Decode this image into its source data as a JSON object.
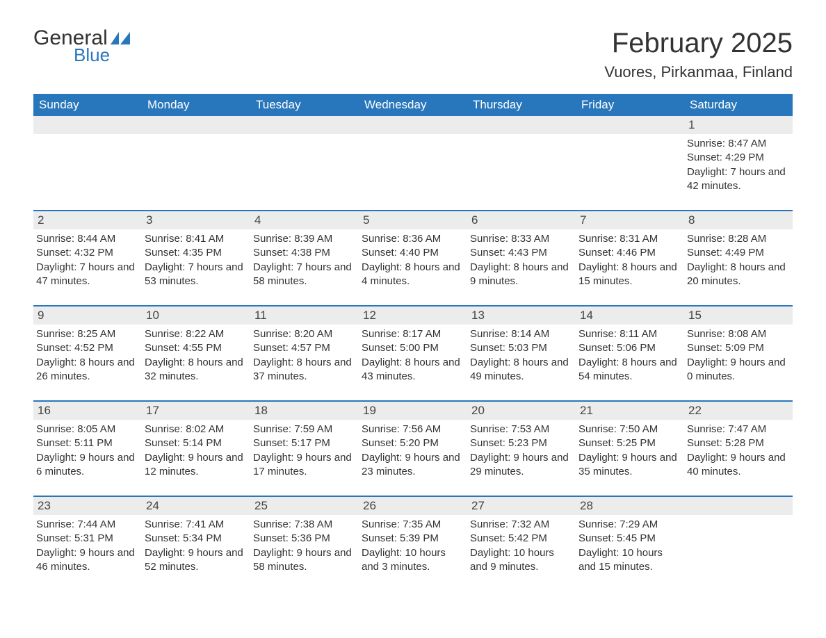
{
  "logo": {
    "text1": "General",
    "text2": "Blue",
    "flag_color": "#2876bb"
  },
  "title": "February 2025",
  "location": "Vuores, Pirkanmaa, Finland",
  "colors": {
    "header_bg": "#2876bb",
    "header_text": "#ffffff",
    "daynum_bg": "#ececec",
    "border": "#2876bb",
    "text": "#333333",
    "background": "#ffffff"
  },
  "typography": {
    "title_fontsize": 40,
    "location_fontsize": 22,
    "weekday_fontsize": 17,
    "daynum_fontsize": 17,
    "body_fontsize": 15
  },
  "weekdays": [
    "Sunday",
    "Monday",
    "Tuesday",
    "Wednesday",
    "Thursday",
    "Friday",
    "Saturday"
  ],
  "labels": {
    "sunrise": "Sunrise:",
    "sunset": "Sunset:",
    "daylight": "Daylight:"
  },
  "weeks": [
    [
      null,
      null,
      null,
      null,
      null,
      null,
      {
        "n": "1",
        "sunrise": "8:47 AM",
        "sunset": "4:29 PM",
        "daylight": "7 hours and 42 minutes."
      }
    ],
    [
      {
        "n": "2",
        "sunrise": "8:44 AM",
        "sunset": "4:32 PM",
        "daylight": "7 hours and 47 minutes."
      },
      {
        "n": "3",
        "sunrise": "8:41 AM",
        "sunset": "4:35 PM",
        "daylight": "7 hours and 53 minutes."
      },
      {
        "n": "4",
        "sunrise": "8:39 AM",
        "sunset": "4:38 PM",
        "daylight": "7 hours and 58 minutes."
      },
      {
        "n": "5",
        "sunrise": "8:36 AM",
        "sunset": "4:40 PM",
        "daylight": "8 hours and 4 minutes."
      },
      {
        "n": "6",
        "sunrise": "8:33 AM",
        "sunset": "4:43 PM",
        "daylight": "8 hours and 9 minutes."
      },
      {
        "n": "7",
        "sunrise": "8:31 AM",
        "sunset": "4:46 PM",
        "daylight": "8 hours and 15 minutes."
      },
      {
        "n": "8",
        "sunrise": "8:28 AM",
        "sunset": "4:49 PM",
        "daylight": "8 hours and 20 minutes."
      }
    ],
    [
      {
        "n": "9",
        "sunrise": "8:25 AM",
        "sunset": "4:52 PM",
        "daylight": "8 hours and 26 minutes."
      },
      {
        "n": "10",
        "sunrise": "8:22 AM",
        "sunset": "4:55 PM",
        "daylight": "8 hours and 32 minutes."
      },
      {
        "n": "11",
        "sunrise": "8:20 AM",
        "sunset": "4:57 PM",
        "daylight": "8 hours and 37 minutes."
      },
      {
        "n": "12",
        "sunrise": "8:17 AM",
        "sunset": "5:00 PM",
        "daylight": "8 hours and 43 minutes."
      },
      {
        "n": "13",
        "sunrise": "8:14 AM",
        "sunset": "5:03 PM",
        "daylight": "8 hours and 49 minutes."
      },
      {
        "n": "14",
        "sunrise": "8:11 AM",
        "sunset": "5:06 PM",
        "daylight": "8 hours and 54 minutes."
      },
      {
        "n": "15",
        "sunrise": "8:08 AM",
        "sunset": "5:09 PM",
        "daylight": "9 hours and 0 minutes."
      }
    ],
    [
      {
        "n": "16",
        "sunrise": "8:05 AM",
        "sunset": "5:11 PM",
        "daylight": "9 hours and 6 minutes."
      },
      {
        "n": "17",
        "sunrise": "8:02 AM",
        "sunset": "5:14 PM",
        "daylight": "9 hours and 12 minutes."
      },
      {
        "n": "18",
        "sunrise": "7:59 AM",
        "sunset": "5:17 PM",
        "daylight": "9 hours and 17 minutes."
      },
      {
        "n": "19",
        "sunrise": "7:56 AM",
        "sunset": "5:20 PM",
        "daylight": "9 hours and 23 minutes."
      },
      {
        "n": "20",
        "sunrise": "7:53 AM",
        "sunset": "5:23 PM",
        "daylight": "9 hours and 29 minutes."
      },
      {
        "n": "21",
        "sunrise": "7:50 AM",
        "sunset": "5:25 PM",
        "daylight": "9 hours and 35 minutes."
      },
      {
        "n": "22",
        "sunrise": "7:47 AM",
        "sunset": "5:28 PM",
        "daylight": "9 hours and 40 minutes."
      }
    ],
    [
      {
        "n": "23",
        "sunrise": "7:44 AM",
        "sunset": "5:31 PM",
        "daylight": "9 hours and 46 minutes."
      },
      {
        "n": "24",
        "sunrise": "7:41 AM",
        "sunset": "5:34 PM",
        "daylight": "9 hours and 52 minutes."
      },
      {
        "n": "25",
        "sunrise": "7:38 AM",
        "sunset": "5:36 PM",
        "daylight": "9 hours and 58 minutes."
      },
      {
        "n": "26",
        "sunrise": "7:35 AM",
        "sunset": "5:39 PM",
        "daylight": "10 hours and 3 minutes."
      },
      {
        "n": "27",
        "sunrise": "7:32 AM",
        "sunset": "5:42 PM",
        "daylight": "10 hours and 9 minutes."
      },
      {
        "n": "28",
        "sunrise": "7:29 AM",
        "sunset": "5:45 PM",
        "daylight": "10 hours and 15 minutes."
      },
      null
    ]
  ]
}
